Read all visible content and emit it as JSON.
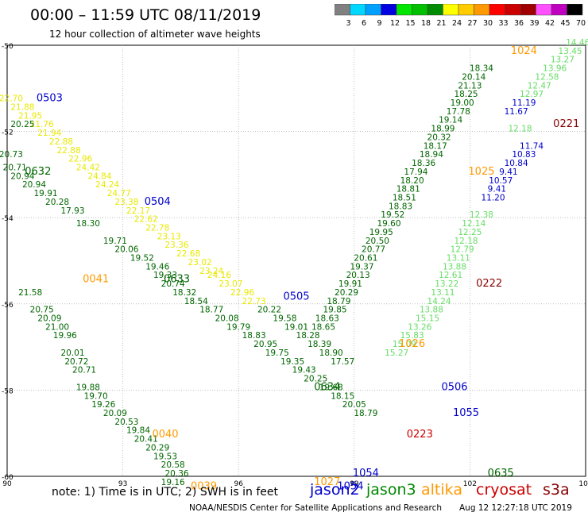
{
  "header": {
    "title": "00:00 – 11:59 UTC 08/11/2019",
    "subtitle": "12 hour collection of altimeter wave heights"
  },
  "legend": {
    "colors": [
      "#808080",
      "#00d8ff",
      "#00a0ff",
      "#0000e0",
      "#00e600",
      "#00c000",
      "#008c00",
      "#ffff00",
      "#ffcc00",
      "#ff9900",
      "#ff0000",
      "#cc0000",
      "#a00000",
      "#ff50ff",
      "#c000c0",
      "#000000"
    ],
    "labels": [
      "3",
      "6",
      "9",
      "12",
      "15",
      "18",
      "21",
      "24",
      "27",
      "30",
      "33",
      "36",
      "39",
      "42",
      "45",
      "70",
      "(ft)"
    ]
  },
  "footer": {
    "note": "note: 1) Time is in UTC; 2) SWH is in feet",
    "satellites": [
      {
        "name": "jason2",
        "color": "#0000cc"
      },
      {
        "name": "jason3",
        "color": "#008800"
      },
      {
        "name": "altika",
        "color": "#ff9900"
      },
      {
        "name": "cryosat",
        "color": "#cc0000"
      },
      {
        "name": "s3a",
        "color": "#880000"
      }
    ],
    "credit": "NOAA/NESDIS Center for Satellite Applications and Research",
    "stamp": "Aug 12 12:27:18 UTC 2019"
  },
  "chart_data": {
    "type": "scatter",
    "title": "00:00 – 11:59 UTC 08/11/2019",
    "subtitle": "12 hour collection of altimeter wave heights",
    "x_ticks": [
      90,
      93,
      96,
      99,
      102,
      105
    ],
    "y_ticks": [
      -50,
      -52,
      -54,
      -56,
      -58,
      -60
    ],
    "xlim": [
      90,
      105
    ],
    "ylim": [
      -60,
      -50
    ],
    "grid": true,
    "time_labels": [
      {
        "text": "0503",
        "lon": 91.1,
        "lat": -51.3,
        "color": "#0000cc"
      },
      {
        "text": "0504",
        "lon": 93.9,
        "lat": -53.7,
        "color": "#0000cc"
      },
      {
        "text": "0505",
        "lon": 97.5,
        "lat": -55.9,
        "color": "#0000cc"
      },
      {
        "text": "0506",
        "lon": 101.6,
        "lat": -58.0,
        "color": "#0000cc"
      },
      {
        "text": "0632",
        "lon": 90.8,
        "lat": -53.0,
        "color": "#006600"
      },
      {
        "text": "0633",
        "lon": 94.4,
        "lat": -55.5,
        "color": "#006600"
      },
      {
        "text": "0634",
        "lon": 98.3,
        "lat": -58.0,
        "color": "#006600"
      },
      {
        "text": "0635",
        "lon": 102.8,
        "lat": -60.0,
        "color": "#006600"
      },
      {
        "text": "0041",
        "lon": 92.3,
        "lat": -55.5,
        "color": "#ff9900"
      },
      {
        "text": "0040",
        "lon": 94.1,
        "lat": -59.1,
        "color": "#ff9900"
      },
      {
        "text": "0039",
        "lon": 95.1,
        "lat": -60.3,
        "color": "#ff9900"
      },
      {
        "text": "1024",
        "lon": 103.4,
        "lat": -50.2,
        "color": "#ff9900"
      },
      {
        "text": "1025",
        "lon": 102.3,
        "lat": -53.0,
        "color": "#ff9900"
      },
      {
        "text": "1026",
        "lon": 100.5,
        "lat": -57.0,
        "color": "#ff9900"
      },
      {
        "text": "1027",
        "lon": 98.3,
        "lat": -60.2,
        "color": "#ff9900"
      },
      {
        "text": "1054",
        "lon": 99.3,
        "lat": -60.0,
        "color": "#0000cc"
      },
      {
        "text": "1055",
        "lon": 101.9,
        "lat": -58.6,
        "color": "#0000cc"
      },
      {
        "text": "1054",
        "lon": 98.9,
        "lat": -60.3,
        "color": "#0000cc"
      },
      {
        "text": "0221",
        "lon": 104.5,
        "lat": -51.9,
        "color": "#880000"
      },
      {
        "text": "0222",
        "lon": 102.5,
        "lat": -55.6,
        "color": "#880000"
      },
      {
        "text": "0223",
        "lon": 100.7,
        "lat": -59.1,
        "color": "#cc0000"
      }
    ],
    "series": [
      {
        "name": "jason2 (0503–0506)",
        "color": "#e8e800",
        "points": [
          [
            90.1,
            -51.3,
            22.7
          ],
          [
            90.4,
            -51.5,
            21.88
          ],
          [
            90.6,
            -51.7,
            21.95
          ],
          [
            90.9,
            -51.9,
            21.76
          ],
          [
            91.1,
            -52.1,
            21.94
          ],
          [
            91.4,
            -52.3,
            22.88
          ],
          [
            91.6,
            -52.5,
            22.88
          ],
          [
            91.9,
            -52.7,
            22.96
          ],
          [
            92.1,
            -52.9,
            24.42
          ],
          [
            92.4,
            -53.1,
            24.84
          ],
          [
            92.6,
            -53.3,
            24.24
          ],
          [
            92.9,
            -53.5,
            24.77
          ],
          [
            93.1,
            -53.7,
            23.38
          ],
          [
            93.4,
            -53.9,
            22.17
          ],
          [
            93.6,
            -54.1,
            22.62
          ],
          [
            93.9,
            -54.3,
            22.78
          ],
          [
            94.2,
            -54.5,
            23.13
          ],
          [
            94.4,
            -54.7,
            23.36
          ],
          [
            94.7,
            -54.9,
            22.68
          ],
          [
            95.0,
            -55.1,
            23.02
          ],
          [
            95.3,
            -55.3,
            23.24
          ],
          [
            95.5,
            -55.4,
            24.16
          ],
          [
            95.8,
            -55.6,
            23.07
          ],
          [
            96.1,
            -55.8,
            22.96
          ],
          [
            96.4,
            -56.0,
            22.73
          ]
        ]
      },
      {
        "name": "jason2 labels",
        "color": "#006600",
        "points": [
          [
            90.4,
            -51.9,
            20.25
          ],
          [
            96.8,
            -56.2,
            20.22
          ],
          [
            97.2,
            -56.4,
            19.58
          ],
          [
            97.5,
            -56.6,
            19.01
          ],
          [
            97.8,
            -56.8,
            18.28
          ],
          [
            98.1,
            -57.0,
            18.39
          ],
          [
            98.4,
            -57.2,
            18.9
          ],
          [
            98.7,
            -57.4,
            17.57
          ]
        ]
      },
      {
        "name": "jason3 (0632–0635)",
        "color": "#006600",
        "points": [
          [
            90.1,
            -52.6,
            20.73
          ],
          [
            90.2,
            -52.9,
            20.71
          ],
          [
            90.4,
            -53.1,
            20.94
          ],
          [
            90.7,
            -53.3,
            20.94
          ],
          [
            91.0,
            -53.5,
            19.91
          ],
          [
            91.3,
            -53.7,
            20.28
          ],
          [
            91.7,
            -53.9,
            17.93
          ],
          [
            92.1,
            -54.2,
            18.3
          ],
          [
            92.8,
            -54.6,
            19.71
          ],
          [
            93.1,
            -54.8,
            20.06
          ],
          [
            93.5,
            -55.0,
            19.52
          ],
          [
            93.9,
            -55.2,
            19.46
          ],
          [
            94.1,
            -55.4,
            19.33
          ],
          [
            94.3,
            -55.6,
            20.74
          ],
          [
            94.6,
            -55.8,
            18.32
          ],
          [
            94.9,
            -56.0,
            18.54
          ],
          [
            95.3,
            -56.2,
            18.77
          ],
          [
            95.7,
            -56.4,
            20.08
          ],
          [
            96.0,
            -56.6,
            19.79
          ],
          [
            96.4,
            -56.8,
            18.83
          ],
          [
            96.7,
            -57.0,
            20.95
          ],
          [
            97.0,
            -57.2,
            19.75
          ],
          [
            97.4,
            -57.4,
            19.35
          ],
          [
            97.7,
            -57.6,
            19.43
          ],
          [
            98.0,
            -57.8,
            20.25
          ],
          [
            98.4,
            -58.0,
            19.68
          ],
          [
            98.7,
            -58.2,
            18.15
          ],
          [
            99.0,
            -58.4,
            20.05
          ],
          [
            99.3,
            -58.6,
            18.79
          ]
        ]
      },
      {
        "name": "jason3 west",
        "color": "#006600",
        "points": [
          [
            90.6,
            -55.8,
            21.58
          ],
          [
            90.9,
            -56.2,
            20.75
          ],
          [
            91.1,
            -56.4,
            20.09
          ],
          [
            91.3,
            -56.6,
            21.0
          ],
          [
            91.5,
            -56.8,
            19.96
          ],
          [
            91.7,
            -57.2,
            20.01
          ],
          [
            91.8,
            -57.4,
            20.72
          ],
          [
            92.0,
            -57.6,
            20.71
          ],
          [
            92.1,
            -58.0,
            19.88
          ],
          [
            92.3,
            -58.2,
            19.7
          ],
          [
            92.5,
            -58.4,
            19.26
          ],
          [
            92.8,
            -58.6,
            20.09
          ],
          [
            93.1,
            -58.8,
            20.53
          ],
          [
            93.4,
            -59.0,
            19.84
          ],
          [
            93.6,
            -59.2,
            20.41
          ],
          [
            93.9,
            -59.4,
            20.29
          ],
          [
            94.1,
            -59.6,
            19.53
          ],
          [
            94.3,
            -59.8,
            20.58
          ],
          [
            94.4,
            -60.0,
            20.36
          ],
          [
            94.3,
            -60.2,
            19.16
          ]
        ]
      },
      {
        "name": "s3a NE track",
        "color": "#66dd66",
        "points": [
          [
            104.8,
            -50.0,
            14.46
          ],
          [
            104.6,
            -50.2,
            13.45
          ],
          [
            104.4,
            -50.4,
            13.27
          ],
          [
            104.2,
            -50.6,
            13.96
          ],
          [
            104.0,
            -50.8,
            12.58
          ],
          [
            103.8,
            -51.0,
            12.47
          ],
          [
            103.6,
            -51.2,
            12.97
          ],
          [
            103.3,
            -52.0,
            12.18
          ],
          [
            102.3,
            -54.0,
            12.38
          ],
          [
            102.1,
            -54.2,
            12.14
          ],
          [
            102.0,
            -54.4,
            12.25
          ],
          [
            101.9,
            -54.6,
            12.18
          ],
          [
            101.8,
            -54.8,
            12.79
          ],
          [
            101.7,
            -55.0,
            13.11
          ],
          [
            101.6,
            -55.2,
            13.88
          ],
          [
            101.5,
            -55.4,
            12.61
          ],
          [
            101.4,
            -55.6,
            13.22
          ],
          [
            101.3,
            -55.8,
            13.11
          ],
          [
            101.2,
            -56.0,
            14.24
          ],
          [
            101.0,
            -56.2,
            13.88
          ],
          [
            100.9,
            -56.4,
            15.15
          ],
          [
            100.7,
            -56.6,
            13.26
          ],
          [
            100.5,
            -56.8,
            15.83
          ],
          [
            100.3,
            -57.0,
            15.09
          ],
          [
            100.1,
            -57.2,
            15.27
          ]
        ]
      },
      {
        "name": "jason2 NE",
        "color": "#0000cc",
        "points": [
          [
            103.4,
            -51.4,
            11.19
          ],
          [
            103.2,
            -51.6,
            11.67
          ],
          [
            103.6,
            -52.4,
            11.74
          ],
          [
            103.4,
            -52.6,
            10.83
          ],
          [
            103.2,
            -52.8,
            10.84
          ],
          [
            103.0,
            -53.0,
            9.41
          ],
          [
            102.8,
            -53.2,
            10.57
          ],
          [
            102.7,
            -53.4,
            9.41
          ],
          [
            102.6,
            -53.6,
            11.2
          ]
        ]
      },
      {
        "name": "jason3 NE",
        "color": "#006600",
        "points": [
          [
            102.3,
            -50.6,
            18.34
          ],
          [
            102.1,
            -50.8,
            20.14
          ],
          [
            102.0,
            -51.0,
            21.13
          ],
          [
            101.9,
            -51.2,
            18.25
          ],
          [
            101.8,
            -51.4,
            19.0
          ],
          [
            101.7,
            -51.6,
            17.78
          ],
          [
            101.5,
            -51.8,
            19.14
          ],
          [
            101.3,
            -52.0,
            18.99
          ],
          [
            101.2,
            -52.2,
            20.32
          ],
          [
            101.1,
            -52.4,
            18.17
          ],
          [
            101.0,
            -52.6,
            18.94
          ],
          [
            100.8,
            -52.8,
            18.36
          ],
          [
            100.6,
            -53.0,
            17.94
          ],
          [
            100.5,
            -53.2,
            18.2
          ],
          [
            100.4,
            -53.4,
            18.81
          ],
          [
            100.3,
            -53.6,
            18.51
          ],
          [
            100.2,
            -53.8,
            18.83
          ],
          [
            100.0,
            -54.0,
            19.52
          ],
          [
            99.9,
            -54.2,
            19.6
          ],
          [
            99.7,
            -54.4,
            19.95
          ],
          [
            99.6,
            -54.6,
            20.5
          ],
          [
            99.5,
            -54.8,
            20.77
          ],
          [
            99.3,
            -55.0,
            20.61
          ],
          [
            99.2,
            -55.2,
            19.37
          ],
          [
            99.1,
            -55.4,
            20.13
          ],
          [
            98.9,
            -55.6,
            19.91
          ],
          [
            98.8,
            -55.8,
            20.29
          ],
          [
            98.6,
            -56.0,
            18.79
          ],
          [
            98.5,
            -56.2,
            19.85
          ],
          [
            98.3,
            -56.4,
            18.63
          ],
          [
            98.2,
            -56.6,
            18.65
          ]
        ]
      }
    ]
  }
}
